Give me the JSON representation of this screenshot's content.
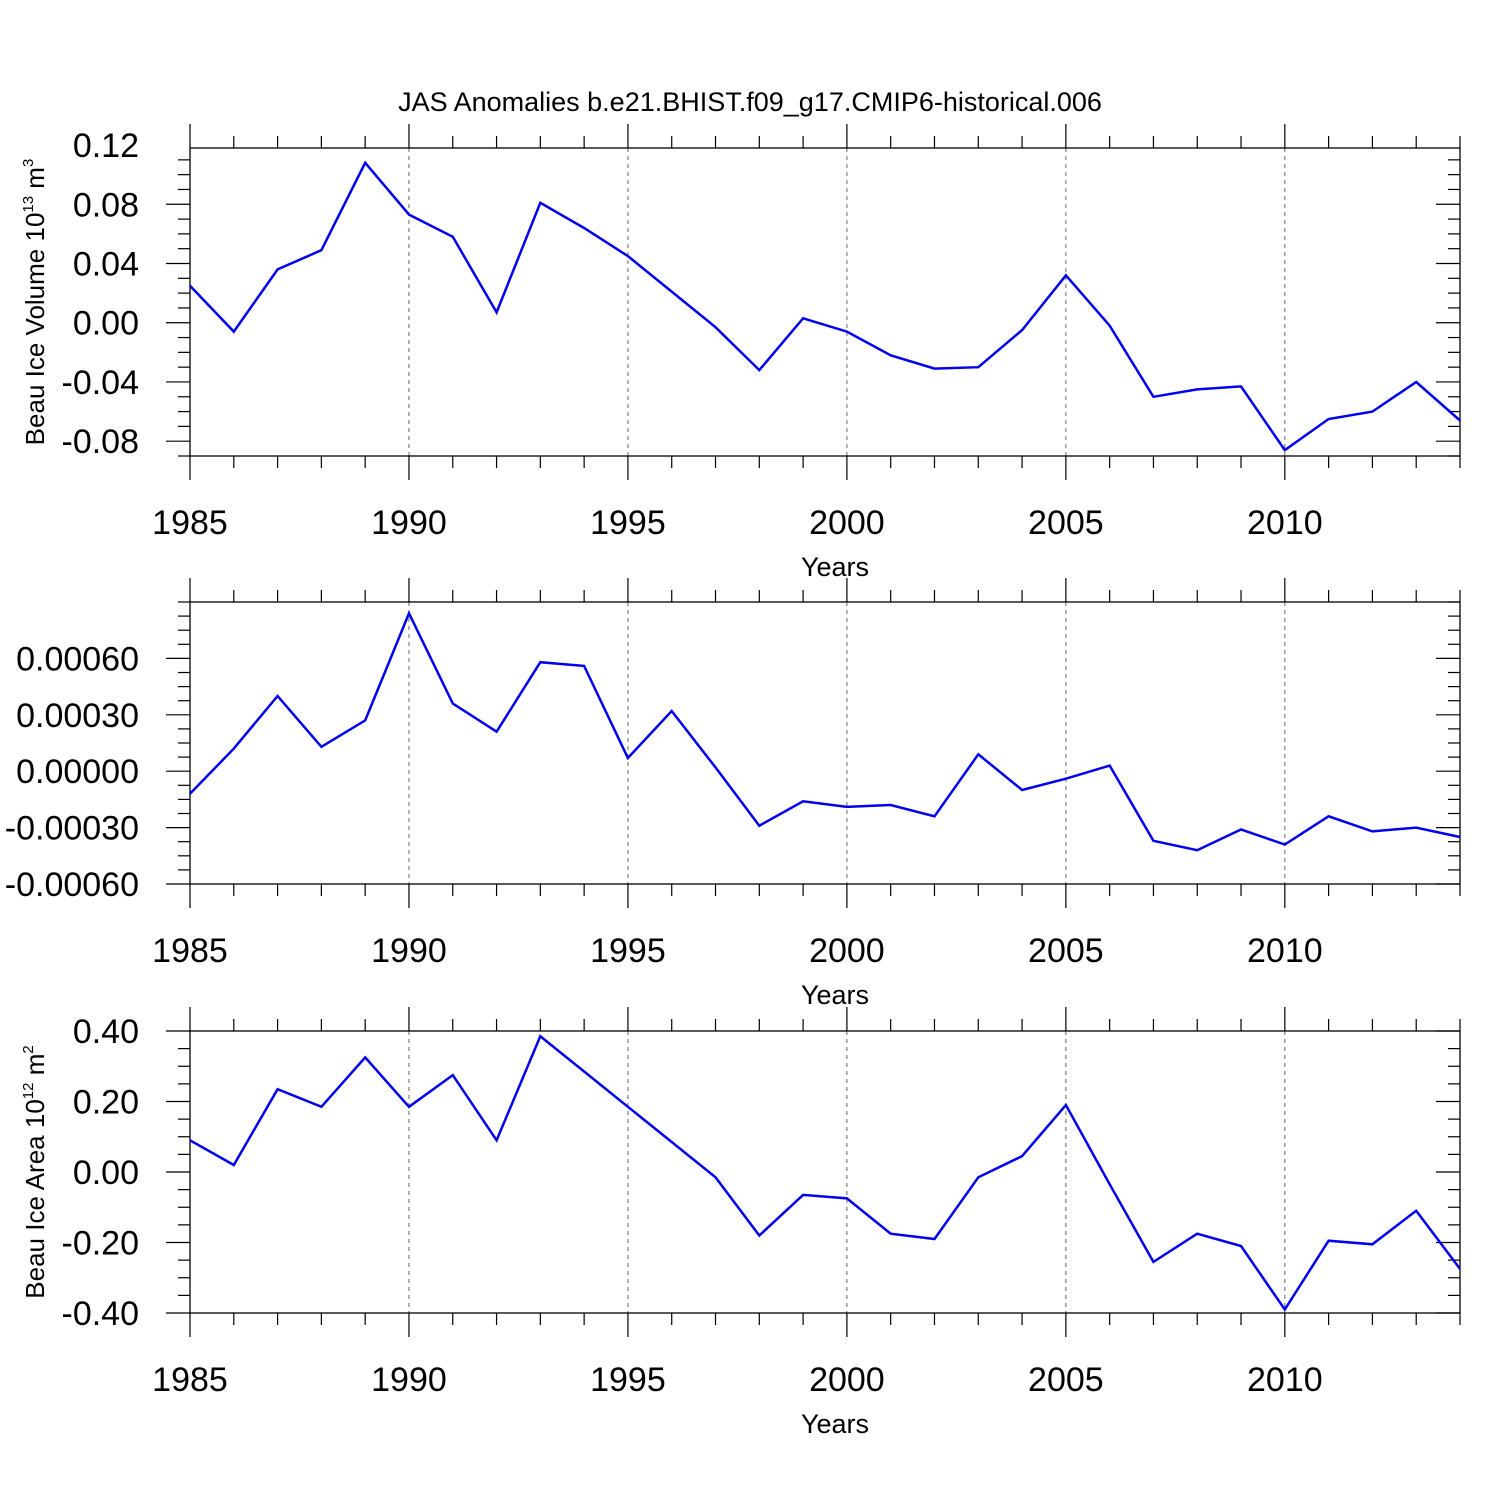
{
  "title": "JAS Anomalies b.e21.BHIST.f09_g17.CMIP6-historical.006",
  "line_color": "#0000ee",
  "chart_data": [
    {
      "type": "line",
      "xlabel": "Years",
      "ylabel": {
        "text": "Beau Ice Volume 10",
        "sup1": "13",
        "mid": " m",
        "sup2": "3"
      },
      "xlim": [
        1985,
        2014
      ],
      "ylim": [
        -0.09,
        0.118
      ],
      "x_ticks": [
        1985,
        1990,
        1995,
        2000,
        2005,
        2010
      ],
      "x_tick_labels": [
        "1985",
        "1990",
        "1995",
        "2000",
        "2005",
        "2010"
      ],
      "y_ticks": [
        -0.08,
        -0.04,
        0.0,
        0.04,
        0.08,
        0.12
      ],
      "y_tick_labels": [
        "-0.08",
        "-0.04",
        "0.00",
        "0.04",
        "0.08",
        "0.12"
      ],
      "grid": "vertical dashed at labeled years",
      "x": [
        1985,
        1986,
        1987,
        1988,
        1989,
        1990,
        1991,
        1992,
        1993,
        1994,
        1995,
        1996,
        1997,
        1998,
        1999,
        2000,
        2001,
        2002,
        2003,
        2004,
        2005,
        2006,
        2007,
        2008,
        2009,
        2010,
        2011,
        2012,
        2013,
        2014
      ],
      "y": [
        0.025,
        -0.006,
        0.036,
        0.049,
        0.108,
        0.073,
        0.058,
        0.007,
        0.081,
        0.064,
        0.045,
        0.021,
        -0.003,
        -0.032,
        0.003,
        -0.006,
        -0.022,
        -0.031,
        -0.03,
        -0.005,
        0.032,
        -0.002,
        -0.05,
        -0.045,
        -0.043,
        -0.086,
        -0.065,
        -0.06,
        -0.04,
        -0.066
      ]
    },
    {
      "type": "line",
      "xlabel": "Years",
      "ylabel": null,
      "xlim": [
        1985,
        2014
      ],
      "ylim": [
        -0.0006,
        0.0009
      ],
      "x_ticks": [
        1985,
        1990,
        1995,
        2000,
        2005,
        2010
      ],
      "x_tick_labels": [
        "1985",
        "1990",
        "1995",
        "2000",
        "2005",
        "2010"
      ],
      "y_ticks": [
        -0.0006,
        -0.0003,
        0.0,
        0.0003,
        0.0006
      ],
      "y_tick_labels": [
        "-0.00060",
        "-0.00030",
        "0.00000",
        "0.00030",
        "0.00060"
      ],
      "grid": "vertical dashed at labeled years",
      "x": [
        1985,
        1986,
        1987,
        1988,
        1989,
        1990,
        1991,
        1992,
        1993,
        1994,
        1995,
        1996,
        1997,
        1998,
        1999,
        2000,
        2001,
        2002,
        2003,
        2004,
        2005,
        2006,
        2007,
        2008,
        2009,
        2010,
        2011,
        2012,
        2013,
        2014
      ],
      "y": [
        -0.00012,
        0.00012,
        0.0004,
        0.00013,
        0.00027,
        0.00084,
        0.00036,
        0.00021,
        0.00058,
        0.00056,
        7e-05,
        0.00032,
        2e-05,
        -0.00029,
        -0.00016,
        -0.00019,
        -0.00018,
        -0.00024,
        9e-05,
        -0.0001,
        -4e-05,
        3e-05,
        -0.00037,
        -0.00042,
        -0.00031,
        -0.00039,
        -0.00024,
        -0.00032,
        -0.0003,
        -0.00035
      ]
    },
    {
      "type": "line",
      "xlabel": "Years",
      "ylabel": {
        "text": "Beau Ice Area 10",
        "sup1": "12",
        "mid": " m",
        "sup2": "2"
      },
      "xlim": [
        1985,
        2014
      ],
      "ylim": [
        -0.4,
        0.4
      ],
      "x_ticks": [
        1985,
        1990,
        1995,
        2000,
        2005,
        2010
      ],
      "x_tick_labels": [
        "1985",
        "1990",
        "1995",
        "2000",
        "2005",
        "2010"
      ],
      "y_ticks": [
        -0.4,
        -0.2,
        0.0,
        0.2,
        0.4
      ],
      "y_tick_labels": [
        "-0.40",
        "-0.20",
        "0.00",
        "0.20",
        "0.40"
      ],
      "grid": "vertical dashed at labeled years",
      "x": [
        1985,
        1986,
        1987,
        1988,
        1989,
        1990,
        1991,
        1992,
        1993,
        1994,
        1995,
        1996,
        1997,
        1998,
        1999,
        2000,
        2001,
        2002,
        2003,
        2004,
        2005,
        2006,
        2007,
        2008,
        2009,
        2010,
        2011,
        2012,
        2013,
        2014
      ],
      "y": [
        0.09,
        0.02,
        0.235,
        0.185,
        0.325,
        0.185,
        0.275,
        0.09,
        0.385,
        0.285,
        0.185,
        0.085,
        -0.015,
        -0.18,
        -0.065,
        -0.075,
        -0.175,
        -0.19,
        -0.015,
        0.045,
        0.19,
        -0.035,
        -0.255,
        -0.175,
        -0.21,
        -0.39,
        -0.195,
        -0.205,
        -0.11,
        -0.275
      ]
    }
  ]
}
